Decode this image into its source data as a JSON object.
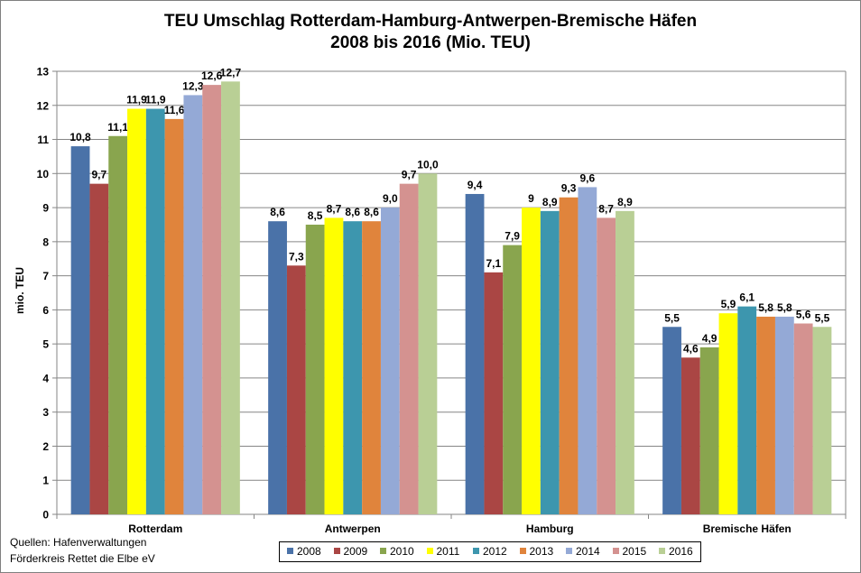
{
  "chart_data": {
    "type": "bar",
    "title_line1": "TEU Umschlag Rotterdam-Hamburg-Antwerpen-Bremische Häfen",
    "title_line2": "2008 bis 2016 (Mio. TEU)",
    "xlabel": "",
    "ylabel": "mio. TEU",
    "ylim": [
      0,
      13
    ],
    "yticks": [
      "0",
      "1",
      "2",
      "3",
      "4",
      "5",
      "6",
      "7",
      "8",
      "9",
      "10",
      "11",
      "12",
      "13"
    ],
    "grid": true,
    "legend_position": "bottom",
    "categories": [
      "Rotterdam",
      "Antwerpen",
      "Hamburg",
      "Bremische Häfen"
    ],
    "series": [
      {
        "name": "2008",
        "color": "#4a72a8",
        "values": [
          10.8,
          8.6,
          9.4,
          5.5
        ],
        "labels": [
          "10,8",
          "8,6",
          "9,4",
          "5,5"
        ]
      },
      {
        "name": "2009",
        "color": "#aa4644",
        "values": [
          9.7,
          7.3,
          7.1,
          4.6
        ],
        "labels": [
          "9,7",
          "7,3",
          "7,1",
          "4,6"
        ]
      },
      {
        "name": "2010",
        "color": "#89a54e",
        "values": [
          11.1,
          8.5,
          7.9,
          4.9
        ],
        "labels": [
          "11,1",
          "8,5",
          "7,9",
          "4,9"
        ]
      },
      {
        "name": "2011",
        "color": "#ffff00",
        "values": [
          11.9,
          8.7,
          9.0,
          5.9
        ],
        "labels": [
          "11,9",
          "8,7",
          "9",
          "5,9"
        ]
      },
      {
        "name": "2012",
        "color": "#3d96ae",
        "values": [
          11.9,
          8.6,
          8.9,
          6.1
        ],
        "labels": [
          "11,9",
          "8,6",
          "8,9",
          "6,1"
        ]
      },
      {
        "name": "2013",
        "color": "#e0843c",
        "values": [
          11.6,
          8.6,
          9.3,
          5.8
        ],
        "labels": [
          "11,6",
          "8,6",
          "9,3",
          "5,8"
        ]
      },
      {
        "name": "2014",
        "color": "#94a9d6",
        "values": [
          12.3,
          9.0,
          9.6,
          5.8
        ],
        "labels": [
          "12,3",
          "9,0",
          "9,6",
          "5,8"
        ]
      },
      {
        "name": "2015",
        "color": "#d49290",
        "values": [
          12.6,
          9.7,
          8.7,
          5.6
        ],
        "labels": [
          "12,6",
          "9,7",
          "8,7",
          "5,6"
        ]
      },
      {
        "name": "2016",
        "color": "#b9cf95",
        "values": [
          12.7,
          10.0,
          8.9,
          5.5
        ],
        "labels": [
          "12,7",
          "10,0",
          "8,9",
          "5,5"
        ]
      }
    ]
  },
  "sources": {
    "line1": "Quellen: Hafenverwaltungen",
    "line2": "Förderkreis Rettet die Elbe eV"
  }
}
